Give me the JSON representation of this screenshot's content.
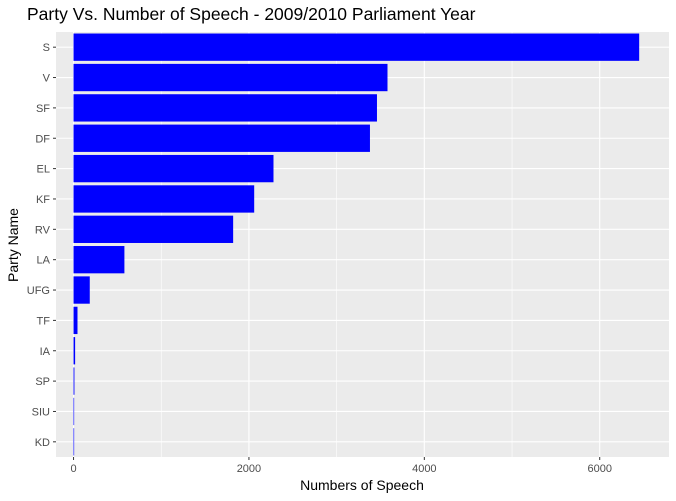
{
  "chart_data": {
    "type": "bar",
    "orientation": "horizontal",
    "title": "Party Vs. Number of Speech - 2009/2010 Parliament Year",
    "xlabel": "Numbers of Speech",
    "ylabel": "Party Name",
    "categories": [
      "S",
      "V",
      "SF",
      "DF",
      "EL",
      "KF",
      "RV",
      "LA",
      "UFG",
      "TF",
      "IA",
      "SP",
      "SIU",
      "KD"
    ],
    "values": [
      6450,
      3580,
      3460,
      3380,
      2280,
      2060,
      1820,
      580,
      185,
      45,
      18,
      10,
      3,
      2
    ],
    "x_ticks": [
      0,
      2000,
      4000,
      6000
    ],
    "x_tick_labels": [
      "0",
      "2000",
      "4000",
      "6000"
    ],
    "xlim": [
      -200,
      6790
    ],
    "bar_color": "#0000ff",
    "panel_color": "#ebebeb",
    "grid": true
  }
}
